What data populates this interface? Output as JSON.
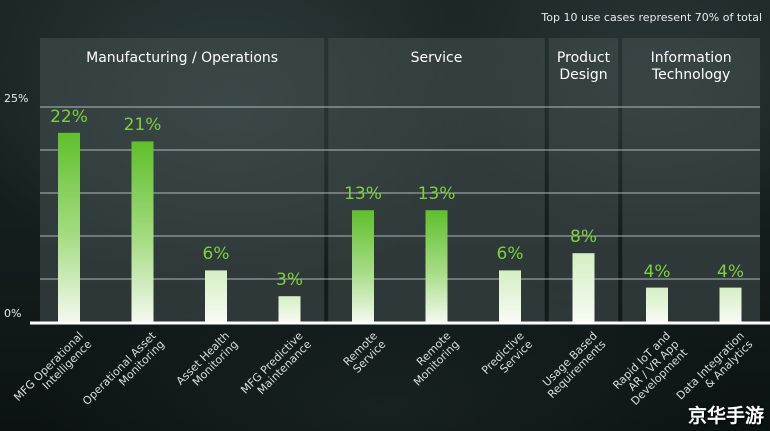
{
  "note": "Top 10 use cases represent 70% of total",
  "watermark": "京华手游",
  "colors": {
    "bar_top_tall": "#5fbf2c",
    "bar_bottom": "#f4f9ef",
    "value_label": "#7dd13f",
    "panel": "#3a4343",
    "gridline": "#d0d6d6",
    "baseline": "#ffffff"
  },
  "chart_data": {
    "type": "bar",
    "title": "",
    "note": "Top 10 use cases represent 70% of total",
    "categories": [
      "MFG Operational Intelligence",
      "Operational Asset Monitoring",
      "Asset Health Monitoring",
      "MFG Predictive Maintenance",
      "Remote Service",
      "Remote Monitoring",
      "Predictive Service",
      "Usage Based Requirements",
      "Rapid IoT and AR / VR App Development",
      "Data Integration & Analytics"
    ],
    "category_lines": [
      [
        "MFG Operational",
        "Intelligence"
      ],
      [
        "Operational Asset",
        "Monitoring"
      ],
      [
        "Asset Health",
        "Monitoring"
      ],
      [
        "MFG Predictive",
        "Maintenance"
      ],
      [
        "Remote",
        "Service"
      ],
      [
        "Remote",
        "Monitoring"
      ],
      [
        "Predictive",
        "Service"
      ],
      [
        "Usage Based",
        "Requirements"
      ],
      [
        "Rapid IoT and",
        "AR / VR App",
        "Development"
      ],
      [
        "Data Integration",
        "& Analytics"
      ]
    ],
    "values": [
      22,
      21,
      6,
      3,
      13,
      13,
      6,
      8,
      4,
      4
    ],
    "value_labels": [
      "22%",
      "21%",
      "6%",
      "3%",
      "13%",
      "13%",
      "6%",
      "8%",
      "4%",
      "4%"
    ],
    "groups": [
      {
        "name": "Manufacturing / Operations",
        "lines": [
          "Manufacturing / Operations"
        ],
        "start": 0,
        "end": 3
      },
      {
        "name": "Service",
        "lines": [
          "Service"
        ],
        "start": 4,
        "end": 6
      },
      {
        "name": "Product Design",
        "lines": [
          "Product",
          "Design"
        ],
        "start": 7,
        "end": 7
      },
      {
        "name": "Information Technology",
        "lines": [
          "Information",
          "Technology"
        ],
        "start": 8,
        "end": 9
      }
    ],
    "y_ticks": [
      {
        "value": 0,
        "label": "0%"
      },
      {
        "value": 25,
        "label": "25%"
      }
    ],
    "ylim": [
      0,
      25
    ],
    "xlabel": "",
    "ylabel": "",
    "grid": true,
    "legend": "none"
  }
}
